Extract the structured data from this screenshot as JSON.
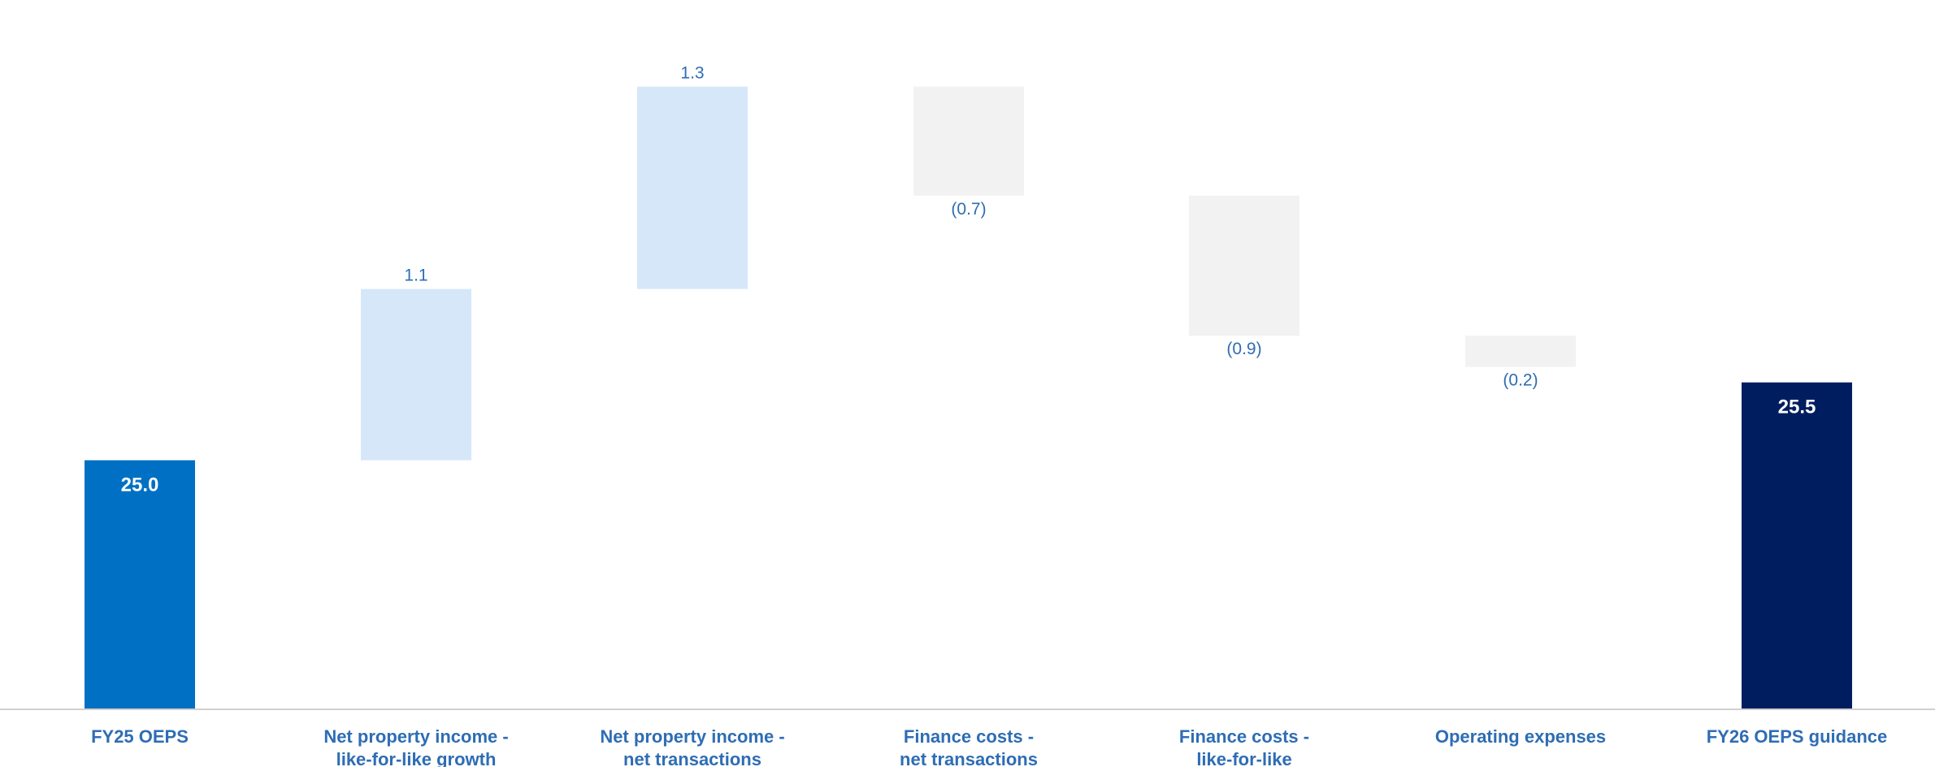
{
  "chart_data": {
    "type": "waterfall",
    "title": "",
    "ylabel": "",
    "ylim": [
      23.4,
      27.8
    ],
    "categories": [
      [
        "FY25 OEPS"
      ],
      [
        "Net property income -",
        "like-for-like growth"
      ],
      [
        "Net property income -",
        "net transactions"
      ],
      [
        "Finance costs -",
        "net transactions"
      ],
      [
        "Finance costs -",
        "like-for-like"
      ],
      [
        "Operating expenses"
      ],
      [
        "FY26 OEPS guidance"
      ]
    ],
    "bars": [
      {
        "kind": "total",
        "value": 25.0,
        "label": "25.0",
        "color": "#0070C4"
      },
      {
        "kind": "increase",
        "value": 1.1,
        "label": "1.1",
        "color": "#D6E7FA"
      },
      {
        "kind": "increase",
        "value": 1.3,
        "label": "1.3",
        "color": "#D6E7FA"
      },
      {
        "kind": "decrease",
        "value": -0.7,
        "label": "(0.7)",
        "color": "#F2F2F2"
      },
      {
        "kind": "decrease",
        "value": -0.9,
        "label": "(0.9)",
        "color": "#F2F2F2"
      },
      {
        "kind": "decrease",
        "value": -0.2,
        "label": "(0.2)",
        "color": "#F2F2F2"
      },
      {
        "kind": "total",
        "value": 25.5,
        "label": "25.5",
        "color": "#001E5F"
      }
    ],
    "colors": {
      "label_text": "#2E6DB4",
      "category_text": "#2E6DB4",
      "total_label_text": "#FFFFFF",
      "axis_line": "#D0D0D0"
    }
  }
}
